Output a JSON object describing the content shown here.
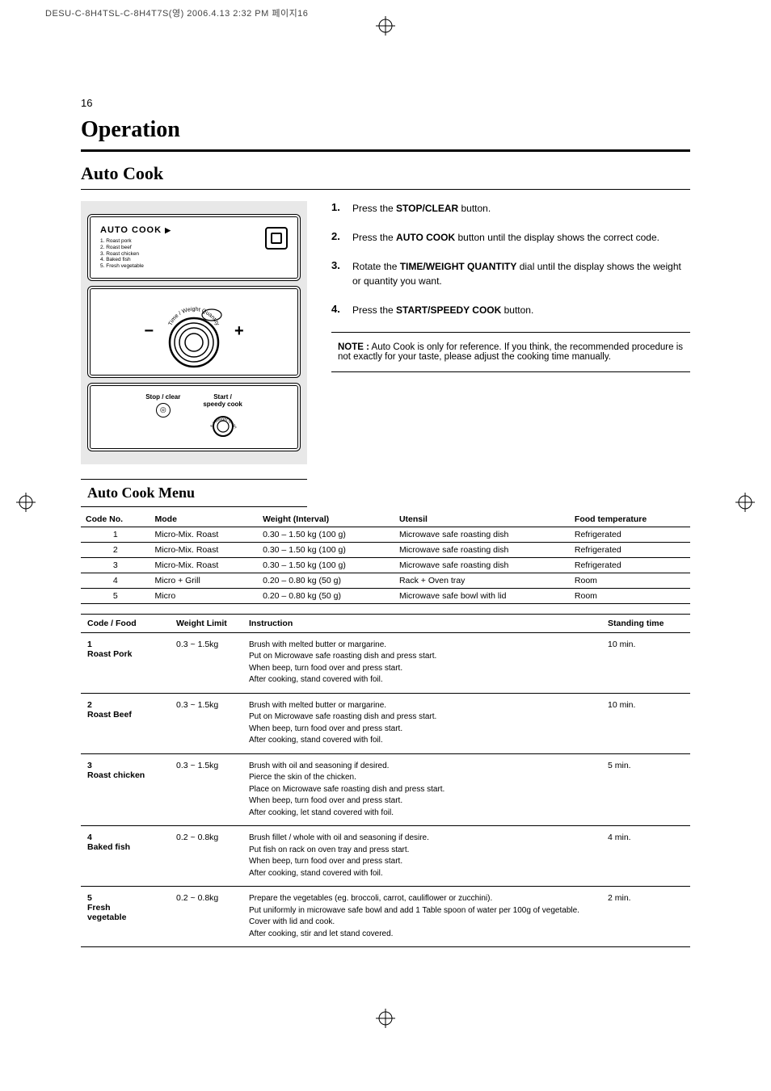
{
  "print_header": "DESU-C-8H4TSL-C-8H4T7S(영)  2006.4.13 2:32 PM  페이지16",
  "page_number": "16",
  "title": "Operation",
  "section": "Auto Cook",
  "autocook_panel": {
    "label": "AUTO COOK",
    "items": [
      "1. Roast pork",
      "2. Roast beef",
      "3. Roast chicken",
      "4. Baked fish",
      "5. Fresh vegetable"
    ]
  },
  "dial_label": "Time / Weight Quantity",
  "minus": "−",
  "plus": "+",
  "stop_label": "Stop / clear",
  "start_label": "Start /",
  "start_label2": "speedy cook",
  "steps": [
    {
      "n": "1.",
      "html": "Press the <b>STOP/CLEAR</b> button."
    },
    {
      "n": "2.",
      "html": "Press the <b>AUTO COOK</b> button until the display shows the correct code."
    },
    {
      "n": "3.",
      "html": "Rotate the <b>TIME/WEIGHT QUANTITY</b> dial until the display shows the weight or quantity you want."
    },
    {
      "n": "4.",
      "html": "Press the <b>START/SPEEDY COOK</b> button."
    }
  ],
  "cook_menu_hdr": "Auto Cook Menu",
  "note": {
    "label": "NOTE :",
    "text": "Auto Cook is only for reference. If you think, the recommended procedure is not exactly for your taste, please adjust the cooking time manually."
  },
  "table1": {
    "headers": [
      "Code No.",
      "Mode",
      "Weight (Interval)",
      "Utensil",
      "Food temperature"
    ],
    "rows": [
      [
        "1",
        "Micro-Mix. Roast",
        "0.30 – 1.50 kg (100 g)",
        "Microwave safe roasting dish",
        "Refrigerated"
      ],
      [
        "2",
        "Micro-Mix. Roast",
        "0.30 – 1.50 kg (100 g)",
        "Microwave safe roasting dish",
        "Refrigerated"
      ],
      [
        "3",
        "Micro-Mix. Roast",
        "0.30 – 1.50 kg (100 g)",
        "Microwave safe roasting dish",
        "Refrigerated"
      ],
      [
        "4",
        "Micro + Grill",
        "0.20 – 0.80 kg (50 g)",
        "Rack + Oven tray",
        "Room"
      ],
      [
        "5",
        "Micro",
        "0.20 – 0.80 kg (50 g)",
        "Microwave safe bowl with lid",
        "Room"
      ]
    ]
  },
  "table2": {
    "headers": [
      "Code / Food",
      "Weight Limit",
      "Instruction",
      "Standing time"
    ],
    "rows": [
      {
        "code": "1\nRoast Pork",
        "wt": "0.3 ~ 1.5kg",
        "instr": "Brush with melted butter or margarine.\nPut on Microwave safe roasting dish and press start.\nWhen beep, turn food over and press start.\nAfter cooking, stand covered with foil.",
        "std": "10 min."
      },
      {
        "code": "2\nRoast Beef",
        "wt": "0.3 ~ 1.5kg",
        "instr": "Brush with melted butter or margarine.\nPut on Microwave safe roasting dish and press start.\nWhen beep, turn food over and press start.\nAfter cooking, stand covered with foil.",
        "std": "10 min."
      },
      {
        "code": "3\nRoast chicken",
        "wt": "0.3 ~ 1.5kg",
        "instr": "Brush with oil and seasoning if desired.\nPierce the skin of the chicken.\nPlace on Microwave safe roasting dish and press start.\nWhen beep, turn food over and press start.\nAfter cooking, let stand covered with foil.",
        "std": "5 min."
      },
      {
        "code": "4\nBaked fish",
        "wt": "0.2 ~ 0.8kg",
        "instr": "Brush fillet / whole with oil and seasoning if desire.\nPut fish on rack on oven tray and press start.\nWhen beep, turn food over and press start.\nAfter cooking, stand covered with foil.",
        "std": "4 min."
      },
      {
        "code": "5\nFresh\nvegetable",
        "wt": "0.2 ~ 0.8kg",
        "instr": "Prepare the vegetables (eg. broccoli, carrot, cauliflower or zucchini).\nPut uniformly in microwave safe bowl and add 1 Table spoon of water per 100g of vegetable.\nCover with lid and cook.\nAfter cooking, stir and let stand covered.",
        "std": "2 min."
      }
    ]
  }
}
